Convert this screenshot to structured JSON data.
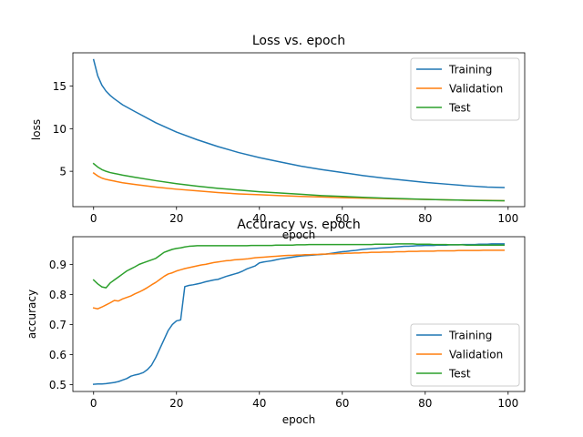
{
  "chart_data": [
    {
      "type": "line",
      "title": "Loss vs. epoch",
      "xlabel": "epoch",
      "ylabel": "loss",
      "xlim": [
        -5,
        104
      ],
      "ylim": [
        0.85,
        18.9
      ],
      "xticks": [
        0,
        20,
        40,
        60,
        80,
        100
      ],
      "yticks": [
        5,
        10,
        15
      ],
      "grid": false,
      "legend": "top-right",
      "x": [
        0,
        1,
        2,
        3,
        4,
        5,
        7,
        10,
        15,
        20,
        25,
        30,
        35,
        40,
        45,
        50,
        55,
        60,
        65,
        70,
        75,
        80,
        85,
        90,
        95,
        99
      ],
      "series": [
        {
          "name": "Training",
          "color": "#1f77b4",
          "values": [
            18.1,
            16.2,
            15.1,
            14.4,
            13.9,
            13.5,
            12.8,
            12.0,
            10.7,
            9.6,
            8.7,
            7.9,
            7.2,
            6.6,
            6.1,
            5.6,
            5.2,
            4.85,
            4.5,
            4.2,
            3.95,
            3.7,
            3.5,
            3.3,
            3.15,
            3.1
          ]
        },
        {
          "name": "Validation",
          "color": "#ff7f0e",
          "values": [
            4.8,
            4.45,
            4.2,
            4.05,
            3.95,
            3.85,
            3.65,
            3.45,
            3.15,
            2.9,
            2.7,
            2.5,
            2.35,
            2.25,
            2.15,
            2.05,
            1.98,
            1.9,
            1.85,
            1.8,
            1.75,
            1.7,
            1.65,
            1.6,
            1.58,
            1.55
          ]
        },
        {
          "name": "Test",
          "color": "#2ca02c",
          "values": [
            5.9,
            5.5,
            5.2,
            5.0,
            4.85,
            4.75,
            4.55,
            4.3,
            3.9,
            3.55,
            3.25,
            3.0,
            2.8,
            2.6,
            2.45,
            2.3,
            2.15,
            2.05,
            1.95,
            1.85,
            1.78,
            1.7,
            1.65,
            1.6,
            1.56,
            1.55
          ]
        }
      ]
    },
    {
      "type": "line",
      "title": "Accuracy vs. epoch",
      "xlabel": "epoch",
      "ylabel": "accuracy",
      "xlim": [
        -5,
        104
      ],
      "ylim": [
        0.477,
        0.992
      ],
      "xticks": [
        0,
        20,
        40,
        60,
        80,
        100
      ],
      "yticks": [
        0.5,
        0.6,
        0.7,
        0.8,
        0.9
      ],
      "grid": false,
      "legend": "bottom-right",
      "x": [
        0,
        1,
        2,
        3,
        4,
        5,
        6,
        7,
        8,
        9,
        10,
        11,
        12,
        13,
        14,
        15,
        16,
        17,
        18,
        19,
        20,
        21,
        22,
        23,
        24,
        25,
        26,
        27,
        28,
        29,
        30,
        31,
        32,
        33,
        34,
        35,
        36,
        37,
        38,
        39,
        40,
        41,
        42,
        43,
        44,
        45,
        46,
        47,
        48,
        49,
        50,
        51,
        52,
        53,
        54,
        55,
        56,
        57,
        58,
        59,
        60,
        61,
        62,
        63,
        64,
        65,
        66,
        67,
        68,
        69,
        70,
        71,
        72,
        73,
        74,
        75,
        76,
        77,
        78,
        79,
        80,
        81,
        82,
        83,
        84,
        85,
        86,
        87,
        88,
        89,
        90,
        91,
        92,
        93,
        94,
        95,
        96,
        97,
        98,
        99
      ],
      "series": [
        {
          "name": "Training",
          "color": "#1f77b4",
          "values": [
            0.501,
            0.502,
            0.502,
            0.503,
            0.505,
            0.507,
            0.51,
            0.515,
            0.52,
            0.528,
            0.532,
            0.535,
            0.54,
            0.55,
            0.565,
            0.59,
            0.62,
            0.65,
            0.68,
            0.7,
            0.712,
            0.715,
            0.826,
            0.83,
            0.832,
            0.835,
            0.838,
            0.842,
            0.845,
            0.848,
            0.85,
            0.855,
            0.86,
            0.864,
            0.868,
            0.872,
            0.878,
            0.885,
            0.89,
            0.895,
            0.905,
            0.908,
            0.91,
            0.912,
            0.915,
            0.918,
            0.92,
            0.922,
            0.924,
            0.926,
            0.928,
            0.929,
            0.93,
            0.931,
            0.932,
            0.933,
            0.934,
            0.936,
            0.938,
            0.94,
            0.942,
            0.943,
            0.945,
            0.946,
            0.948,
            0.95,
            0.951,
            0.952,
            0.953,
            0.954,
            0.955,
            0.956,
            0.957,
            0.958,
            0.959,
            0.96,
            0.96,
            0.961,
            0.962,
            0.962,
            0.963,
            0.963,
            0.963,
            0.964,
            0.964,
            0.964,
            0.965,
            0.965,
            0.965,
            0.966,
            0.966,
            0.966,
            0.966,
            0.967,
            0.967,
            0.967,
            0.968,
            0.968,
            0.968,
            0.968
          ]
        },
        {
          "name": "Validation",
          "color": "#ff7f0e",
          "values": [
            0.755,
            0.752,
            0.758,
            0.765,
            0.772,
            0.78,
            0.778,
            0.785,
            0.79,
            0.795,
            0.802,
            0.808,
            0.815,
            0.823,
            0.832,
            0.84,
            0.85,
            0.86,
            0.868,
            0.872,
            0.878,
            0.882,
            0.886,
            0.889,
            0.892,
            0.895,
            0.898,
            0.9,
            0.903,
            0.906,
            0.908,
            0.91,
            0.912,
            0.913,
            0.915,
            0.916,
            0.917,
            0.918,
            0.92,
            0.922,
            0.923,
            0.924,
            0.925,
            0.926,
            0.927,
            0.928,
            0.929,
            0.93,
            0.93,
            0.931,
            0.931,
            0.932,
            0.932,
            0.933,
            0.933,
            0.934,
            0.934,
            0.935,
            0.935,
            0.936,
            0.936,
            0.937,
            0.937,
            0.938,
            0.938,
            0.939,
            0.939,
            0.94,
            0.94,
            0.94,
            0.941,
            0.941,
            0.941,
            0.942,
            0.942,
            0.942,
            0.943,
            0.943,
            0.943,
            0.944,
            0.944,
            0.944,
            0.944,
            0.945,
            0.945,
            0.945,
            0.945,
            0.945,
            0.946,
            0.946,
            0.946,
            0.946,
            0.946,
            0.946,
            0.947,
            0.947,
            0.947,
            0.947,
            0.947,
            0.947
          ]
        },
        {
          "name": "Test",
          "color": "#2ca02c",
          "values": [
            0.848,
            0.835,
            0.825,
            0.822,
            0.838,
            0.848,
            0.858,
            0.868,
            0.878,
            0.885,
            0.892,
            0.9,
            0.905,
            0.91,
            0.915,
            0.92,
            0.93,
            0.94,
            0.945,
            0.95,
            0.953,
            0.955,
            0.958,
            0.96,
            0.961,
            0.962,
            0.962,
            0.962,
            0.962,
            0.962,
            0.962,
            0.962,
            0.962,
            0.962,
            0.962,
            0.962,
            0.962,
            0.962,
            0.963,
            0.963,
            0.963,
            0.963,
            0.963,
            0.963,
            0.964,
            0.964,
            0.964,
            0.964,
            0.964,
            0.965,
            0.965,
            0.965,
            0.966,
            0.966,
            0.966,
            0.966,
            0.966,
            0.966,
            0.966,
            0.966,
            0.966,
            0.966,
            0.966,
            0.966,
            0.966,
            0.966,
            0.966,
            0.966,
            0.967,
            0.967,
            0.967,
            0.967,
            0.967,
            0.968,
            0.968,
            0.968,
            0.968,
            0.968,
            0.967,
            0.967,
            0.967,
            0.967,
            0.966,
            0.966,
            0.966,
            0.966,
            0.965,
            0.965,
            0.965,
            0.965,
            0.964,
            0.964,
            0.964,
            0.964,
            0.964,
            0.964,
            0.964,
            0.964,
            0.964,
            0.964
          ]
        }
      ]
    }
  ]
}
